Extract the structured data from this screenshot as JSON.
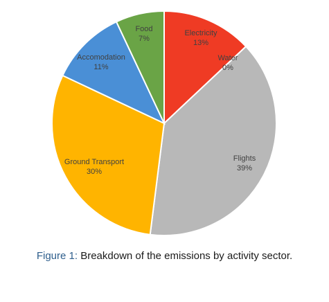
{
  "caption": {
    "prefix": "Figure 1:",
    "text": " Breakdown of the emissions by activity sector."
  },
  "chart_data": {
    "type": "pie",
    "start_angle_deg": 0,
    "direction": "clockwise",
    "slices": [
      {
        "label": "Electricity",
        "percent_label": "13%",
        "value": 13,
        "color": "#ef3b24"
      },
      {
        "label": "Water",
        "percent_label": "0%",
        "value": 0,
        "color": "#4472c4"
      },
      {
        "label": "Flights",
        "percent_label": "39%",
        "value": 39,
        "color": "#b8b8b8"
      },
      {
        "label": "Ground Transport",
        "percent_label": "30%",
        "value": 30,
        "color": "#ffb400"
      },
      {
        "label": "Accomodation",
        "percent_label": "11%",
        "value": 11,
        "color": "#4a8fd6"
      },
      {
        "label": "Food",
        "percent_label": "7%",
        "value": 7,
        "color": "#6aa446"
      }
    ],
    "legend": "none"
  }
}
